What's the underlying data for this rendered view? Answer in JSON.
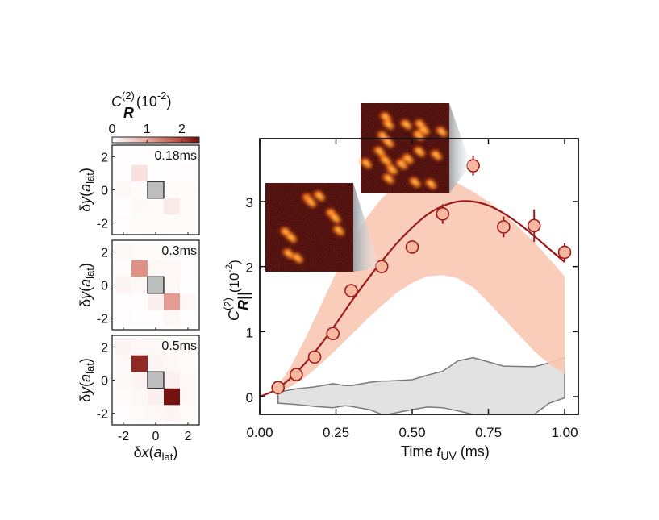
{
  "chart_data": [
    {
      "type": "heatmap",
      "panel": "colorbar",
      "title": "C_R^(2) (10^-2)",
      "title_parts": {
        "main": "C",
        "superscript": "(2)",
        "subscript": "R",
        "unit": "(10",
        "unit_exp": "-2",
        "unit_close": ")"
      },
      "range": [
        0,
        2.5
      ],
      "ticks": [
        0,
        1,
        2
      ],
      "tick_labels": [
        "0",
        "1",
        "2"
      ],
      "color_low": "#ffffff",
      "color_high": "#7a1010"
    },
    {
      "type": "heatmap",
      "label": "0.18ms",
      "xlabel": "δx(a_lat)",
      "ylabel": "δy(a_lat)",
      "x": [
        -2,
        -1,
        0,
        1,
        2
      ],
      "y": [
        2,
        1,
        0,
        -1,
        -2
      ],
      "x_ticks": [
        "-2",
        "0",
        "2"
      ],
      "y_ticks": [
        "2",
        "0",
        "-2"
      ],
      "center_masked": true,
      "values": [
        [
          0.03,
          0.02,
          0.03,
          0.02,
          0.02
        ],
        [
          0.03,
          0.35,
          0.03,
          0.02,
          0.03
        ],
        [
          0.08,
          0.05,
          null,
          0.05,
          0.06
        ],
        [
          0.02,
          0.07,
          0.06,
          0.25,
          0.05
        ],
        [
          0.03,
          0.04,
          0.05,
          0.04,
          0.04
        ]
      ]
    },
    {
      "type": "heatmap",
      "label": "0.3ms",
      "xlabel": "δx(a_lat)",
      "ylabel": "δy(a_lat)",
      "x": [
        -2,
        -1,
        0,
        1,
        2
      ],
      "y": [
        2,
        1,
        0,
        -1,
        -2
      ],
      "x_ticks": [
        "-2",
        "0",
        "2"
      ],
      "y_ticks": [
        "2",
        "0",
        "-2"
      ],
      "center_masked": true,
      "values": [
        [
          0.08,
          0.06,
          0.04,
          0.03,
          0.03
        ],
        [
          0.04,
          1.25,
          0.1,
          0.08,
          0.03
        ],
        [
          0.12,
          0.1,
          null,
          0.1,
          0.02
        ],
        [
          0.03,
          0.03,
          0.18,
          1.15,
          0.08
        ],
        [
          0.03,
          0.01,
          0.02,
          0.1,
          0.02
        ]
      ]
    },
    {
      "type": "heatmap",
      "label": "0.5ms",
      "xlabel": "δx(a_lat)",
      "ylabel": "δy(a_lat)",
      "x": [
        -2,
        -1,
        0,
        1,
        2
      ],
      "y": [
        2,
        1,
        0,
        -1,
        -2
      ],
      "x_ticks": [
        "-2",
        "0",
        "2"
      ],
      "y_ticks": [
        "2",
        "0",
        "-2"
      ],
      "center_masked": true,
      "values": [
        [
          0.12,
          0.08,
          0.1,
          0.06,
          0.04
        ],
        [
          0.08,
          2.25,
          0.12,
          0.1,
          0.05
        ],
        [
          0.1,
          0.14,
          null,
          0.16,
          0.08
        ],
        [
          0.04,
          0.1,
          0.18,
          2.45,
          0.1
        ],
        [
          0.03,
          0.06,
          0.1,
          0.12,
          0.06
        ]
      ]
    },
    {
      "type": "scatter",
      "title": "",
      "xlabel": "Time t_UV (ms)",
      "xlabel_parts": {
        "main": "Time ",
        "var": "t",
        "sub": "UV",
        "unit": " (ms)"
      },
      "ylabel": "C_R||^(2) (10^-2)",
      "ylabel_parts": {
        "main": "C",
        "sup": "(2)",
        "sub": "R||",
        "unit": "(10",
        "unit_exp": "-2",
        "unit_close": ")"
      },
      "xlim": [
        0,
        1.05
      ],
      "ylim": [
        -0.27,
        3.95
      ],
      "x_ticks": [
        0,
        0.25,
        0.5,
        0.75,
        1.0
      ],
      "x_tick_labels": [
        "0.00",
        "0.25",
        "0.50",
        "0.75",
        "1.00"
      ],
      "y_ticks": [
        0,
        1,
        2,
        3
      ],
      "y_tick_labels": [
        "0",
        "1",
        "2",
        "3"
      ],
      "grid": false,
      "series": [
        {
          "name": "data",
          "kind": "points",
          "color": "#9e1b1b",
          "fill": "#f8b8a0",
          "x": [
            0.06,
            0.12,
            0.18,
            0.24,
            0.3,
            0.4,
            0.5,
            0.6,
            0.7,
            0.8,
            0.9,
            1.0
          ],
          "y": [
            0.14,
            0.34,
            0.61,
            0.97,
            1.63,
            2.0,
            2.3,
            2.81,
            3.55,
            2.61,
            2.63,
            2.22
          ],
          "yerr": [
            0.05,
            0.05,
            0.06,
            0.07,
            0.07,
            0.1,
            0.1,
            0.15,
            0.15,
            0.16,
            0.25,
            0.14
          ]
        },
        {
          "name": "fit",
          "kind": "line",
          "color": "#9e1b1b",
          "x": [
            0,
            0.05,
            0.1,
            0.15,
            0.2,
            0.25,
            0.3,
            0.35,
            0.4,
            0.45,
            0.5,
            0.55,
            0.6,
            0.65,
            0.7,
            0.75,
            0.8,
            0.85,
            0.9,
            0.95,
            1.0
          ],
          "y": [
            0.0,
            0.1,
            0.28,
            0.52,
            0.8,
            1.12,
            1.46,
            1.78,
            2.08,
            2.36,
            2.6,
            2.8,
            2.93,
            3.0,
            3.0,
            2.94,
            2.82,
            2.66,
            2.47,
            2.27,
            2.07
          ]
        },
        {
          "name": "theory-band",
          "kind": "band",
          "color": "#f9c8b4",
          "x": [
            0.05,
            0.1,
            0.15,
            0.2,
            0.25,
            0.3,
            0.35,
            0.4,
            0.45,
            0.5,
            0.55,
            0.6,
            0.65,
            0.7,
            0.75,
            0.8,
            0.85,
            0.9,
            0.95,
            1.0
          ],
          "lower": [
            0.02,
            0.15,
            0.3,
            0.5,
            0.72,
            0.95,
            1.18,
            1.4,
            1.6,
            1.75,
            1.85,
            1.87,
            1.82,
            1.68,
            1.45,
            1.2,
            0.95,
            0.7,
            0.5,
            0.35
          ],
          "upper": [
            0.1,
            0.45,
            0.9,
            1.4,
            1.9,
            2.35,
            2.75,
            3.05,
            3.25,
            3.35,
            3.38,
            3.35,
            3.28,
            3.15,
            3.0,
            2.82,
            2.6,
            2.38,
            2.12,
            1.85
          ]
        },
        {
          "name": "background-band",
          "kind": "band",
          "color": "#e2e2e2",
          "edge_color": "#7a7a7a",
          "x": [
            0.06,
            0.12,
            0.18,
            0.24,
            0.28,
            0.3,
            0.36,
            0.4,
            0.42,
            0.5,
            0.55,
            0.6,
            0.65,
            0.7,
            0.8,
            0.9,
            0.95,
            1.0
          ],
          "lower": [
            -0.1,
            -0.12,
            -0.15,
            -0.17,
            -0.14,
            -0.15,
            -0.2,
            -0.34,
            -0.34,
            -0.2,
            -0.16,
            -0.17,
            -0.22,
            -0.45,
            -0.45,
            -0.4,
            -0.1,
            -0.02
          ],
          "upper": [
            0.07,
            0.12,
            0.15,
            0.2,
            0.17,
            0.17,
            0.22,
            0.24,
            0.24,
            0.26,
            0.33,
            0.39,
            0.55,
            0.6,
            0.47,
            0.46,
            0.52,
            0.6
          ]
        }
      ],
      "insets": [
        {
          "name": "inset-0.4ms",
          "points_to_x": 0.4,
          "points_to_y": 2.0,
          "spots": 10
        },
        {
          "name": "inset-0.7ms",
          "points_to_x": 0.7,
          "points_to_y": 3.55,
          "spots": 20
        }
      ]
    }
  ]
}
